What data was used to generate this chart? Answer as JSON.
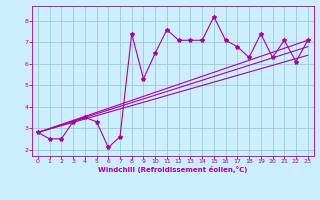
{
  "xlabel": "Windchill (Refroidissement éolien,°C)",
  "bg_color": "#cceeff",
  "line_color": "#aa00aa",
  "grid_color": "#99cccc",
  "xlim": [
    -0.5,
    23.5
  ],
  "ylim": [
    1.7,
    8.7
  ],
  "xticks": [
    0,
    1,
    2,
    3,
    4,
    5,
    6,
    7,
    8,
    9,
    10,
    11,
    12,
    13,
    14,
    15,
    16,
    17,
    18,
    19,
    20,
    21,
    22,
    23
  ],
  "yticks": [
    2,
    3,
    4,
    5,
    6,
    7,
    8
  ],
  "series1_x": [
    0,
    1,
    2,
    3,
    4,
    5,
    6,
    7,
    8,
    9,
    10,
    11,
    12,
    13,
    14,
    15,
    16,
    17,
    18,
    19,
    20,
    21,
    22,
    23
  ],
  "series1_y": [
    2.8,
    2.5,
    2.5,
    3.3,
    3.5,
    3.3,
    2.1,
    2.6,
    7.4,
    5.3,
    6.5,
    7.6,
    7.1,
    7.1,
    7.1,
    8.2,
    7.1,
    6.8,
    6.3,
    7.4,
    6.3,
    7.1,
    6.1,
    7.1
  ],
  "line2_x": [
    0,
    23
  ],
  "line2_y": [
    2.8,
    7.1
  ],
  "line3_x": [
    0,
    23
  ],
  "line3_y": [
    2.8,
    6.4
  ],
  "line4_x": [
    0,
    23
  ],
  "line4_y": [
    2.8,
    6.8
  ]
}
